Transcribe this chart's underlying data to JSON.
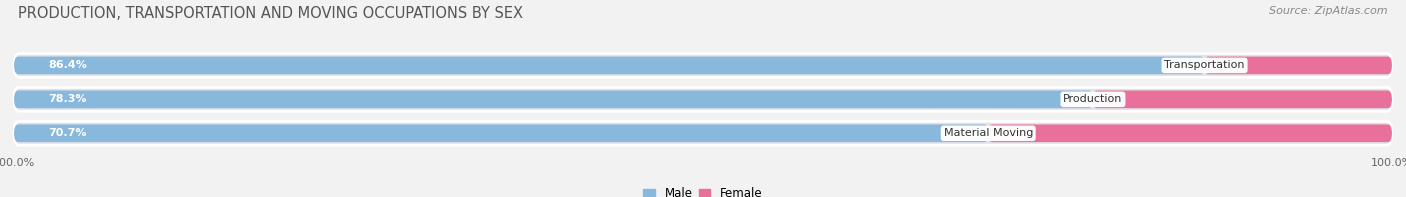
{
  "title": "PRODUCTION, TRANSPORTATION AND MOVING OCCUPATIONS BY SEX",
  "source": "Source: ZipAtlas.com",
  "categories": [
    "Transportation",
    "Production",
    "Material Moving"
  ],
  "male_pct": [
    86.4,
    78.3,
    70.7
  ],
  "female_pct": [
    13.6,
    21.7,
    29.3
  ],
  "male_color": "#88b8dc",
  "female_color": "#e8709a",
  "female_light_color": "#f0b0c8",
  "bg_color": "#f2f2f2",
  "bar_bg_color": "#e0e0e8",
  "title_fontsize": 10.5,
  "source_fontsize": 8,
  "label_fontsize": 8,
  "bar_height": 0.52,
  "legend_male": "Male",
  "legend_female": "Female"
}
